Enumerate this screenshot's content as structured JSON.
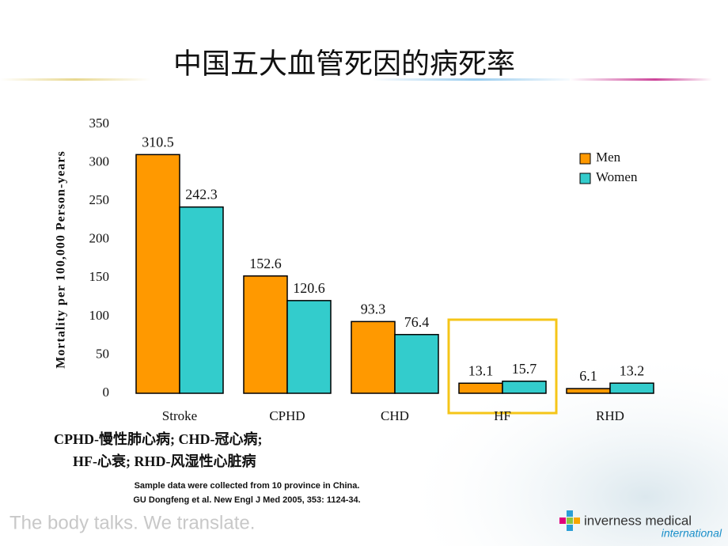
{
  "chart_data": {
    "type": "bar",
    "title": "中国五大血管死因的病死率",
    "y_label": "Mortality per 100,000 Person-years",
    "categories": [
      "Stroke",
      "CPHD",
      "CHD",
      "HF",
      "RHD"
    ],
    "series": [
      {
        "name": "Men",
        "color": "#ff9900",
        "values": [
          310.5,
          152.6,
          93.3,
          13.1,
          6.1
        ]
      },
      {
        "name": "Women",
        "color": "#33cccc",
        "values": [
          242.3,
          120.6,
          76.4,
          15.7,
          13.2
        ]
      }
    ],
    "ylim": [
      0,
      350
    ],
    "yticks": [
      0,
      50,
      100,
      150,
      200,
      250,
      300,
      350
    ],
    "grid": false,
    "legend": "upper right",
    "notes": [
      "CPHD-慢性肺心病; CHD-冠心病;",
      "HF-心衰; RHD-风湿性心脏病"
    ],
    "source": [
      "Sample data were collected from 10 province in China.",
      "GU Dongfeng et al. New Engl J Med 2005, 353:  1124-34."
    ]
  },
  "footer": {
    "tagline": "The body talks. We translate.",
    "logo": "inverness medical",
    "logo_sub": "international"
  }
}
